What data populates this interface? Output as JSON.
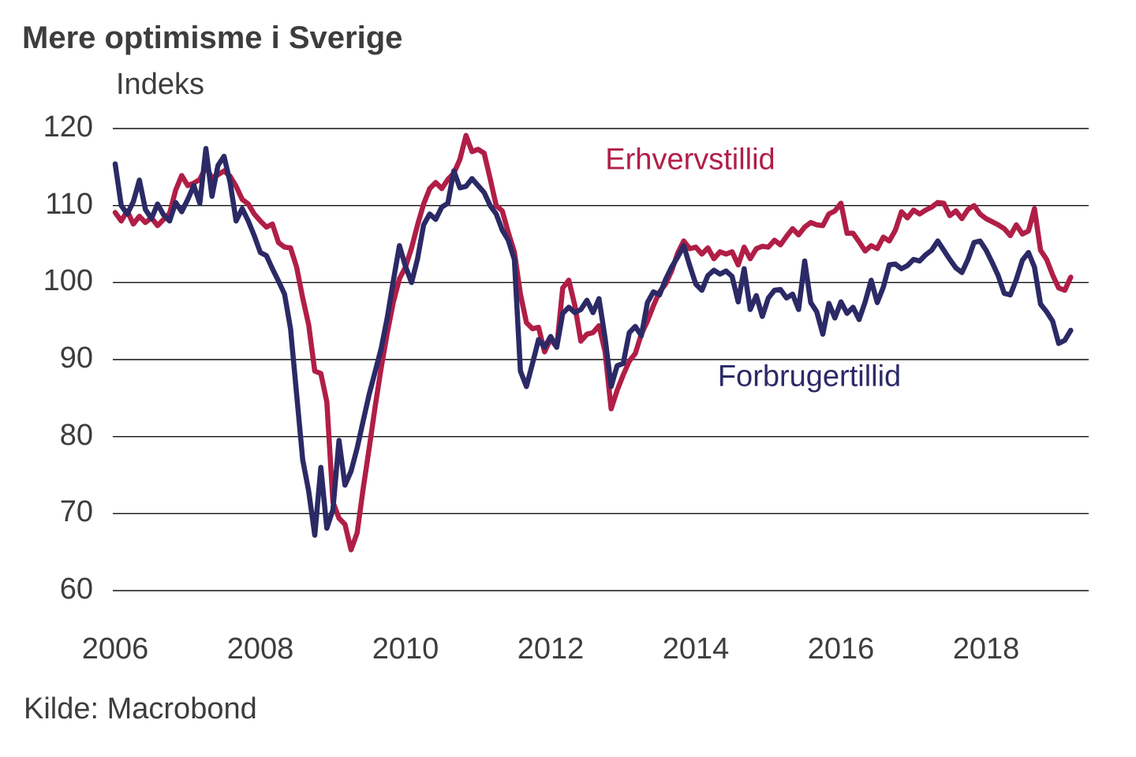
{
  "title": "Mere optimisme i Sverige",
  "y_axis_label": "Indeks",
  "source": "Kilde: Macrobond",
  "colors": {
    "business": "#B01E46",
    "consumer": "#2B2A66",
    "text": "#3D3D3D",
    "grid": "#111111",
    "background": "#FFFFFF"
  },
  "chart_data": {
    "type": "line",
    "title": "Mere optimisme i Sverige",
    "xlabel": "",
    "ylabel": "Indeks",
    "ylim": [
      60,
      120
    ],
    "grid": true,
    "legend_position": "annotations-in-plot",
    "y_ticks": [
      120,
      110,
      100,
      90,
      80,
      70,
      60
    ],
    "x_tick_labels": [
      "2006",
      "2008",
      "2010",
      "2012",
      "2014",
      "2016",
      "2018"
    ],
    "x_start_year": 2006,
    "x_step_months": 1,
    "x_end": "2019-03",
    "series": [
      {
        "name": "Erhvervstillid",
        "color": "#B01E46",
        "values": [
          109.1,
          108.0,
          109.3,
          107.6,
          108.6,
          107.8,
          108.4,
          107.4,
          108.2,
          109.0,
          112.0,
          113.9,
          112.6,
          112.9,
          113.4,
          115.0,
          113.6,
          114.0,
          114.5,
          113.8,
          112.5,
          110.8,
          110.2,
          108.9,
          108.0,
          107.2,
          107.6,
          105.2,
          104.6,
          104.5,
          102.0,
          98.0,
          94.5,
          88.5,
          88.2,
          84.5,
          71.5,
          69.4,
          68.6,
          65.3,
          67.5,
          73.2,
          78.5,
          84.0,
          89.0,
          93.5,
          97.5,
          100.5,
          102.0,
          104.5,
          107.5,
          110.2,
          112.2,
          113.0,
          112.2,
          113.4,
          114.2,
          116.0,
          119.1,
          117.0,
          117.3,
          116.8,
          113.5,
          110.0,
          109.3,
          106.5,
          104.0,
          98.5,
          94.8,
          94.0,
          94.2,
          91.0,
          92.7,
          91.6,
          99.3,
          100.3,
          97.0,
          92.4,
          93.3,
          93.5,
          94.4,
          91.0,
          83.6,
          86.0,
          88.0,
          89.8,
          90.8,
          93.3,
          95.0,
          97.0,
          98.8,
          99.8,
          101.5,
          103.8,
          105.4,
          104.4,
          104.6,
          103.7,
          104.5,
          103.1,
          104.0,
          103.7,
          104.0,
          102.3,
          104.6,
          103.1,
          104.4,
          104.7,
          104.6,
          105.5,
          104.9,
          106.0,
          107.0,
          106.2,
          107.2,
          107.8,
          107.5,
          107.4,
          108.9,
          109.3,
          110.3,
          106.4,
          106.4,
          105.3,
          104.1,
          104.8,
          104.4,
          105.9,
          105.4,
          106.8,
          109.2,
          108.4,
          109.4,
          108.9,
          109.4,
          109.8,
          110.4,
          110.3,
          108.7,
          109.3,
          108.3,
          109.5,
          110.0,
          108.9,
          108.3,
          107.9,
          107.5,
          107.0,
          106.1,
          107.5,
          106.3,
          106.7,
          109.6,
          104.2,
          103.0,
          101.0,
          99.3,
          99.0,
          100.7
        ]
      },
      {
        "name": "Forbrugertillid",
        "color": "#2B2A66",
        "values": [
          115.4,
          110.0,
          108.9,
          110.5,
          113.3,
          109.5,
          108.3,
          110.2,
          108.8,
          108.0,
          110.4,
          109.2,
          110.8,
          112.6,
          110.3,
          117.4,
          111.2,
          115.2,
          116.4,
          113.0,
          108.0,
          109.6,
          108.0,
          106.1,
          103.9,
          103.5,
          101.8,
          100.2,
          98.5,
          94.0,
          85.5,
          77.0,
          72.9,
          67.2,
          76.0,
          68.1,
          70.5,
          79.5,
          73.7,
          75.5,
          78.5,
          82.0,
          85.5,
          88.5,
          91.5,
          95.5,
          100.3,
          104.8,
          102.1,
          100.0,
          103.1,
          107.5,
          108.9,
          108.2,
          109.8,
          110.3,
          114.5,
          112.3,
          112.5,
          113.5,
          112.6,
          111.7,
          110.0,
          108.9,
          106.8,
          105.5,
          103.0,
          88.5,
          86.5,
          89.5,
          92.6,
          91.6,
          93.0,
          91.6,
          96.0,
          96.8,
          96.1,
          96.5,
          97.7,
          96.1,
          97.9,
          92.8,
          86.5,
          89.2,
          89.5,
          93.5,
          94.3,
          93.1,
          97.4,
          98.8,
          98.4,
          100.4,
          102.0,
          103.3,
          104.8,
          102.2,
          99.8,
          99.0,
          100.9,
          101.6,
          101.1,
          101.5,
          100.8,
          97.5,
          101.8,
          96.5,
          98.3,
          95.6,
          98.0,
          99.0,
          99.1,
          98.0,
          98.5,
          96.5,
          102.8,
          97.4,
          96.2,
          93.3,
          97.3,
          95.4,
          97.5,
          96.0,
          96.8,
          95.2,
          97.5,
          100.3,
          97.4,
          99.4,
          102.3,
          102.4,
          101.8,
          102.2,
          103.0,
          102.8,
          103.6,
          104.2,
          105.4,
          104.2,
          103.0,
          101.9,
          101.3,
          103.0,
          105.2,
          105.4,
          104.2,
          102.6,
          100.9,
          98.6,
          98.4,
          100.4,
          102.9,
          103.9,
          102.0,
          97.2,
          96.2,
          95.0,
          92.1,
          92.5,
          93.8
        ]
      }
    ]
  }
}
